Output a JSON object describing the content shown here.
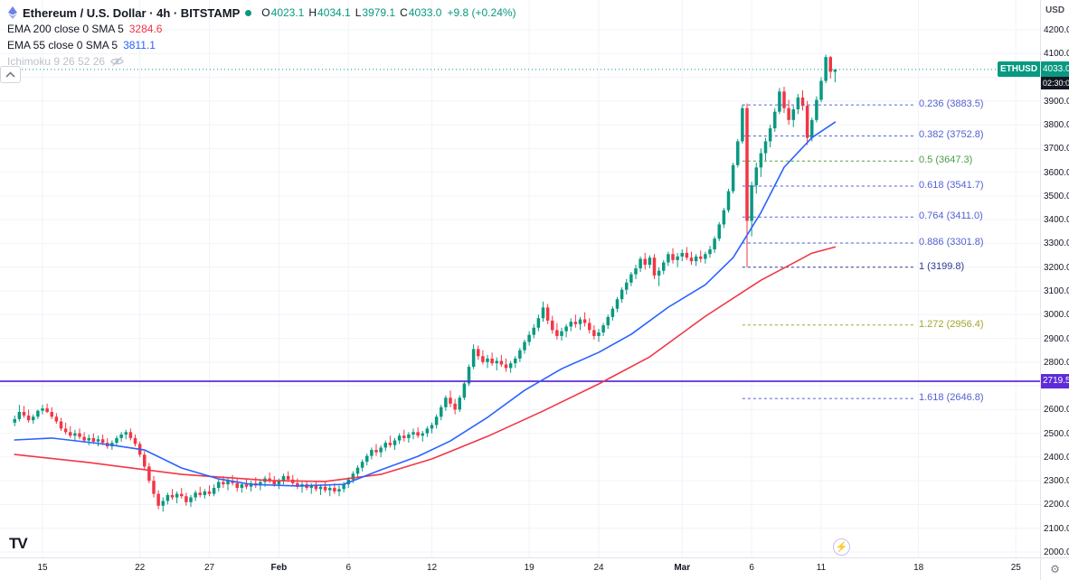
{
  "colors": {
    "up": "#089981",
    "down": "#f23645",
    "ema200": "#f23645",
    "ema55": "#2962ff",
    "purple_line": "#5e2bd9",
    "grid": "#f0f3fa",
    "axis_border": "#e0e3eb",
    "fib_blue": "#5261cf",
    "fib_green": "#4a9e45",
    "fib_olive": "#a3a42e",
    "fib_navy": "#2f3a8f",
    "last_price": "#089981"
  },
  "legend": {
    "title": "Ethereum / U.S. Dollar · 4h · BITSTAMP",
    "ohlc": {
      "o_label": "O",
      "o": "4023.1",
      "h_label": "H",
      "h": "4034.1",
      "l_label": "L",
      "l": "3979.1",
      "c_label": "C",
      "c": "4033.0",
      "change": "+9.8 (+0.24%)"
    },
    "indicators": [
      {
        "name": "EMA 200 close 0 SMA 5",
        "value": "3284.6"
      },
      {
        "name": "EMA 55 close 0 SMA 5",
        "value": "3811.1"
      },
      {
        "name": "Ichimoku 9 26 52 26",
        "value": ""
      }
    ]
  },
  "price_axis": {
    "currency_label": "USD",
    "ticks": [
      "4200.0",
      "4100.0",
      "4000.0",
      "3900.0",
      "3800.0",
      "3700.0",
      "3600.0",
      "3500.0",
      "3400.0",
      "3300.0",
      "3200.0",
      "3100.0",
      "3000.0",
      "2900.0",
      "2800.0",
      "2700.0",
      "2600.0",
      "2500.0",
      "2400.0",
      "2300.0",
      "2200.0",
      "2100.0",
      "2000.0"
    ],
    "last_price_badge": {
      "symbol": "ETHUSD",
      "price": "4033.0",
      "countdown": "02:30:0"
    },
    "level_badge": {
      "price": "2719.5"
    }
  },
  "time_axis": {
    "ticks": [
      {
        "label": "15",
        "i": 6
      },
      {
        "label": "22",
        "i": 27
      },
      {
        "label": "27",
        "i": 42
      },
      {
        "label": "Feb",
        "i": 57,
        "major": true
      },
      {
        "label": "6",
        "i": 72
      },
      {
        "label": "12",
        "i": 90
      },
      {
        "label": "19",
        "i": 111
      },
      {
        "label": "24",
        "i": 126
      },
      {
        "label": "Mar",
        "i": 144,
        "major": true
      },
      {
        "label": "6",
        "i": 159
      },
      {
        "label": "11",
        "i": 174
      },
      {
        "label": "18",
        "i": 195
      },
      {
        "label": "25",
        "i": 216
      }
    ]
  },
  "chart_data": {
    "type": "candlestick",
    "title": "Ethereum / U.S. Dollar, 4h, BITSTAMP",
    "symbol": "ETHUSD",
    "exchange": "BITSTAMP",
    "interval": "4h",
    "ylim": [
      2000,
      4200
    ],
    "price_step": 100,
    "grid": true,
    "legend_position": "top-left",
    "last_price": {
      "price": 4033.0
    },
    "h_line": {
      "price": 2719.5
    },
    "fib_levels": [
      {
        "label": "0.236 (3883.5)",
        "price": 3883.5,
        "color": "#5261cf"
      },
      {
        "label": "0.382 (3752.8)",
        "price": 3752.8,
        "color": "#5261cf"
      },
      {
        "label": "0.5 (3647.3)",
        "price": 3647.3,
        "color": "#4a9e45"
      },
      {
        "label": "0.618 (3541.7)",
        "price": 3541.7,
        "color": "#5261cf"
      },
      {
        "label": "0.764 (3411.0)",
        "price": 3411.0,
        "color": "#5261cf"
      },
      {
        "label": "0.886 (3301.8)",
        "price": 3301.8,
        "color": "#5261cf"
      },
      {
        "label": "1 (3199.8)",
        "price": 3199.8,
        "color": "#2f3a8f"
      },
      {
        "label": "1.272 (2956.4)",
        "price": 2956.4,
        "color": "#a3a42e"
      },
      {
        "label": "1.618 (2646.8)",
        "price": 2646.8,
        "color": "#5261cf"
      }
    ],
    "ema200": {
      "name": "EMA 200",
      "last_value": 3284.6,
      "points": [
        [
          0,
          2411
        ],
        [
          16,
          2377
        ],
        [
          36,
          2327
        ],
        [
          55,
          2301
        ],
        [
          67,
          2297
        ],
        [
          79,
          2327
        ],
        [
          90,
          2392
        ],
        [
          102,
          2487
        ],
        [
          114,
          2594
        ],
        [
          126,
          2708
        ],
        [
          137,
          2822
        ],
        [
          149,
          2993
        ],
        [
          161,
          3145
        ],
        [
          172,
          3259
        ],
        [
          177,
          3285
        ]
      ]
    },
    "ema55": {
      "name": "EMA 55",
      "last_value": 3811.1,
      "points": [
        [
          0,
          2472
        ],
        [
          8,
          2480
        ],
        [
          20,
          2453
        ],
        [
          28,
          2430
        ],
        [
          36,
          2354
        ],
        [
          44,
          2308
        ],
        [
          51,
          2285
        ],
        [
          61,
          2278
        ],
        [
          71,
          2285
        ],
        [
          79,
          2346
        ],
        [
          87,
          2403
        ],
        [
          94,
          2468
        ],
        [
          102,
          2567
        ],
        [
          110,
          2681
        ],
        [
          118,
          2772
        ],
        [
          126,
          2841
        ],
        [
          133,
          2917
        ],
        [
          141,
          3031
        ],
        [
          149,
          3126
        ],
        [
          155,
          3240
        ],
        [
          161,
          3430
        ],
        [
          166,
          3621
        ],
        [
          172,
          3746
        ],
        [
          177,
          3811
        ]
      ]
    },
    "candles": [
      [
        2545,
        2575,
        2530,
        2560
      ],
      [
        2560,
        2620,
        2550,
        2590
      ],
      [
        2590,
        2615,
        2565,
        2575
      ],
      [
        2575,
        2600,
        2545,
        2555
      ],
      [
        2555,
        2580,
        2540,
        2570
      ],
      [
        2570,
        2600,
        2560,
        2595
      ],
      [
        2595,
        2620,
        2580,
        2605
      ],
      [
        2605,
        2625,
        2585,
        2590
      ],
      [
        2590,
        2610,
        2560,
        2570
      ],
      [
        2570,
        2585,
        2540,
        2550
      ],
      [
        2550,
        2565,
        2510,
        2520
      ],
      [
        2520,
        2545,
        2495,
        2505
      ],
      [
        2505,
        2530,
        2480,
        2490
      ],
      [
        2490,
        2515,
        2470,
        2500
      ],
      [
        2500,
        2520,
        2475,
        2485
      ],
      [
        2485,
        2505,
        2460,
        2470
      ],
      [
        2470,
        2495,
        2450,
        2480
      ],
      [
        2480,
        2500,
        2455,
        2465
      ],
      [
        2465,
        2490,
        2445,
        2475
      ],
      [
        2475,
        2495,
        2450,
        2460
      ],
      [
        2460,
        2480,
        2435,
        2445
      ],
      [
        2445,
        2470,
        2430,
        2460
      ],
      [
        2460,
        2490,
        2450,
        2480
      ],
      [
        2480,
        2505,
        2465,
        2495
      ],
      [
        2495,
        2515,
        2475,
        2505
      ],
      [
        2505,
        2520,
        2470,
        2480
      ],
      [
        2480,
        2495,
        2445,
        2455
      ],
      [
        2455,
        2465,
        2400,
        2410
      ],
      [
        2410,
        2425,
        2350,
        2360
      ],
      [
        2360,
        2375,
        2290,
        2300
      ],
      [
        2300,
        2320,
        2230,
        2245
      ],
      [
        2245,
        2260,
        2180,
        2195
      ],
      [
        2195,
        2230,
        2170,
        2215
      ],
      [
        2215,
        2250,
        2200,
        2240
      ],
      [
        2240,
        2265,
        2220,
        2230
      ],
      [
        2230,
        2255,
        2205,
        2245
      ],
      [
        2245,
        2270,
        2225,
        2235
      ],
      [
        2235,
        2250,
        2195,
        2210
      ],
      [
        2210,
        2240,
        2190,
        2230
      ],
      [
        2230,
        2260,
        2215,
        2250
      ],
      [
        2250,
        2275,
        2230,
        2240
      ],
      [
        2240,
        2265,
        2225,
        2255
      ],
      [
        2255,
        2280,
        2235,
        2245
      ],
      [
        2245,
        2285,
        2235,
        2270
      ],
      [
        2270,
        2305,
        2255,
        2295
      ],
      [
        2295,
        2320,
        2270,
        2285
      ],
      [
        2285,
        2310,
        2260,
        2300
      ],
      [
        2300,
        2325,
        2280,
        2290
      ],
      [
        2290,
        2310,
        2255,
        2270
      ],
      [
        2270,
        2295,
        2250,
        2285
      ],
      [
        2285,
        2305,
        2265,
        2275
      ],
      [
        2275,
        2300,
        2255,
        2290
      ],
      [
        2290,
        2315,
        2270,
        2280
      ],
      [
        2280,
        2305,
        2260,
        2295
      ],
      [
        2295,
        2320,
        2275,
        2310
      ],
      [
        2310,
        2335,
        2290,
        2300
      ],
      [
        2300,
        2320,
        2275,
        2285
      ],
      [
        2285,
        2310,
        2265,
        2300
      ],
      [
        2300,
        2330,
        2285,
        2320
      ],
      [
        2320,
        2340,
        2295,
        2305
      ],
      [
        2305,
        2325,
        2280,
        2290
      ],
      [
        2290,
        2310,
        2265,
        2275
      ],
      [
        2275,
        2295,
        2250,
        2285
      ],
      [
        2285,
        2300,
        2260,
        2270
      ],
      [
        2270,
        2290,
        2245,
        2280
      ],
      [
        2280,
        2300,
        2255,
        2265
      ],
      [
        2265,
        2285,
        2240,
        2275
      ],
      [
        2275,
        2295,
        2250,
        2260
      ],
      [
        2260,
        2280,
        2235,
        2270
      ],
      [
        2270,
        2290,
        2245,
        2255
      ],
      [
        2255,
        2280,
        2235,
        2265
      ],
      [
        2265,
        2295,
        2250,
        2285
      ],
      [
        2285,
        2315,
        2270,
        2305
      ],
      [
        2305,
        2340,
        2290,
        2330
      ],
      [
        2330,
        2365,
        2315,
        2355
      ],
      [
        2355,
        2390,
        2340,
        2380
      ],
      [
        2380,
        2415,
        2365,
        2405
      ],
      [
        2405,
        2440,
        2390,
        2430
      ],
      [
        2430,
        2455,
        2405,
        2420
      ],
      [
        2420,
        2450,
        2400,
        2440
      ],
      [
        2440,
        2470,
        2425,
        2460
      ],
      [
        2460,
        2490,
        2440,
        2450
      ],
      [
        2450,
        2480,
        2430,
        2470
      ],
      [
        2470,
        2500,
        2455,
        2490
      ],
      [
        2490,
        2515,
        2465,
        2480
      ],
      [
        2480,
        2505,
        2460,
        2495
      ],
      [
        2495,
        2520,
        2475,
        2505
      ],
      [
        2505,
        2525,
        2480,
        2490
      ],
      [
        2490,
        2510,
        2465,
        2500
      ],
      [
        2500,
        2530,
        2485,
        2520
      ],
      [
        2520,
        2545,
        2500,
        2535
      ],
      [
        2535,
        2580,
        2520,
        2570
      ],
      [
        2570,
        2620,
        2555,
        2610
      ],
      [
        2610,
        2660,
        2595,
        2650
      ],
      [
        2650,
        2680,
        2610,
        2625
      ],
      [
        2625,
        2645,
        2580,
        2600
      ],
      [
        2600,
        2660,
        2590,
        2650
      ],
      [
        2650,
        2720,
        2640,
        2710
      ],
      [
        2710,
        2790,
        2700,
        2780
      ],
      [
        2780,
        2875,
        2770,
        2855
      ],
      [
        2855,
        2870,
        2810,
        2825
      ],
      [
        2825,
        2850,
        2790,
        2800
      ],
      [
        2800,
        2830,
        2775,
        2815
      ],
      [
        2815,
        2840,
        2785,
        2795
      ],
      [
        2795,
        2820,
        2765,
        2805
      ],
      [
        2805,
        2830,
        2780,
        2790
      ],
      [
        2790,
        2815,
        2760,
        2775
      ],
      [
        2775,
        2805,
        2755,
        2795
      ],
      [
        2795,
        2825,
        2775,
        2815
      ],
      [
        2815,
        2860,
        2800,
        2850
      ],
      [
        2850,
        2895,
        2835,
        2885
      ],
      [
        2885,
        2930,
        2870,
        2915
      ],
      [
        2915,
        2960,
        2900,
        2945
      ],
      [
        2945,
        3000,
        2930,
        2985
      ],
      [
        2985,
        3055,
        2970,
        3030
      ],
      [
        3030,
        3045,
        2960,
        2975
      ],
      [
        2975,
        2995,
        2920,
        2935
      ],
      [
        2935,
        2965,
        2895,
        2910
      ],
      [
        2910,
        2945,
        2890,
        2930
      ],
      [
        2930,
        2960,
        2905,
        2950
      ],
      [
        2950,
        2985,
        2930,
        2970
      ],
      [
        2970,
        3000,
        2945,
        2960
      ],
      [
        2960,
        2990,
        2935,
        2980
      ],
      [
        2980,
        3010,
        2950,
        2965
      ],
      [
        2965,
        2985,
        2920,
        2935
      ],
      [
        2935,
        2955,
        2895,
        2910
      ],
      [
        2910,
        2940,
        2885,
        2925
      ],
      [
        2925,
        2965,
        2910,
        2955
      ],
      [
        2955,
        3000,
        2940,
        2990
      ],
      [
        2990,
        3035,
        2975,
        3025
      ],
      [
        3025,
        3075,
        3010,
        3065
      ],
      [
        3065,
        3115,
        3050,
        3105
      ],
      [
        3105,
        3150,
        3085,
        3135
      ],
      [
        3135,
        3180,
        3120,
        3170
      ],
      [
        3170,
        3210,
        3150,
        3195
      ],
      [
        3195,
        3245,
        3180,
        3235
      ],
      [
        3235,
        3260,
        3190,
        3210
      ],
      [
        3210,
        3250,
        3195,
        3240
      ],
      [
        3240,
        3255,
        3150,
        3165
      ],
      [
        3165,
        3200,
        3120,
        3185
      ],
      [
        3185,
        3230,
        3170,
        3220
      ],
      [
        3220,
        3265,
        3205,
        3255
      ],
      [
        3255,
        3280,
        3215,
        3230
      ],
      [
        3230,
        3260,
        3200,
        3245
      ],
      [
        3245,
        3275,
        3225,
        3260
      ],
      [
        3260,
        3285,
        3230,
        3240
      ],
      [
        3240,
        3265,
        3210,
        3225
      ],
      [
        3225,
        3255,
        3205,
        3245
      ],
      [
        3245,
        3270,
        3220,
        3235
      ],
      [
        3235,
        3265,
        3215,
        3255
      ],
      [
        3255,
        3290,
        3240,
        3275
      ],
      [
        3275,
        3330,
        3260,
        3320
      ],
      [
        3320,
        3390,
        3310,
        3380
      ],
      [
        3380,
        3450,
        3365,
        3440
      ],
      [
        3440,
        3530,
        3430,
        3520
      ],
      [
        3520,
        3640,
        3510,
        3630
      ],
      [
        3630,
        3740,
        3620,
        3730
      ],
      [
        3730,
        3885,
        3720,
        3870
      ],
      [
        3870,
        3890,
        3200,
        3395
      ],
      [
        3395,
        3560,
        3330,
        3545
      ],
      [
        3545,
        3640,
        3510,
        3620
      ],
      [
        3620,
        3700,
        3580,
        3680
      ],
      [
        3680,
        3745,
        3650,
        3730
      ],
      [
        3730,
        3800,
        3705,
        3785
      ],
      [
        3785,
        3870,
        3770,
        3855
      ],
      [
        3855,
        3955,
        3845,
        3940
      ],
      [
        3940,
        3960,
        3850,
        3870
      ],
      [
        3870,
        3905,
        3800,
        3820
      ],
      [
        3820,
        3880,
        3790,
        3865
      ],
      [
        3865,
        3930,
        3845,
        3915
      ],
      [
        3915,
        3945,
        3860,
        3880
      ],
      [
        3880,
        3900,
        3715,
        3745
      ],
      [
        3745,
        3830,
        3730,
        3820
      ],
      [
        3820,
        3920,
        3810,
        3905
      ],
      [
        3905,
        4000,
        3895,
        3985
      ],
      [
        3985,
        4095,
        3975,
        4085
      ],
      [
        4085,
        4090,
        3995,
        4023
      ],
      [
        4023,
        4034,
        3979,
        4033
      ]
    ]
  },
  "footer": {
    "lightning_icon": "⚡",
    "gear_icon": "⚙",
    "logo": "TV",
    "collapse": "chevron-up"
  }
}
